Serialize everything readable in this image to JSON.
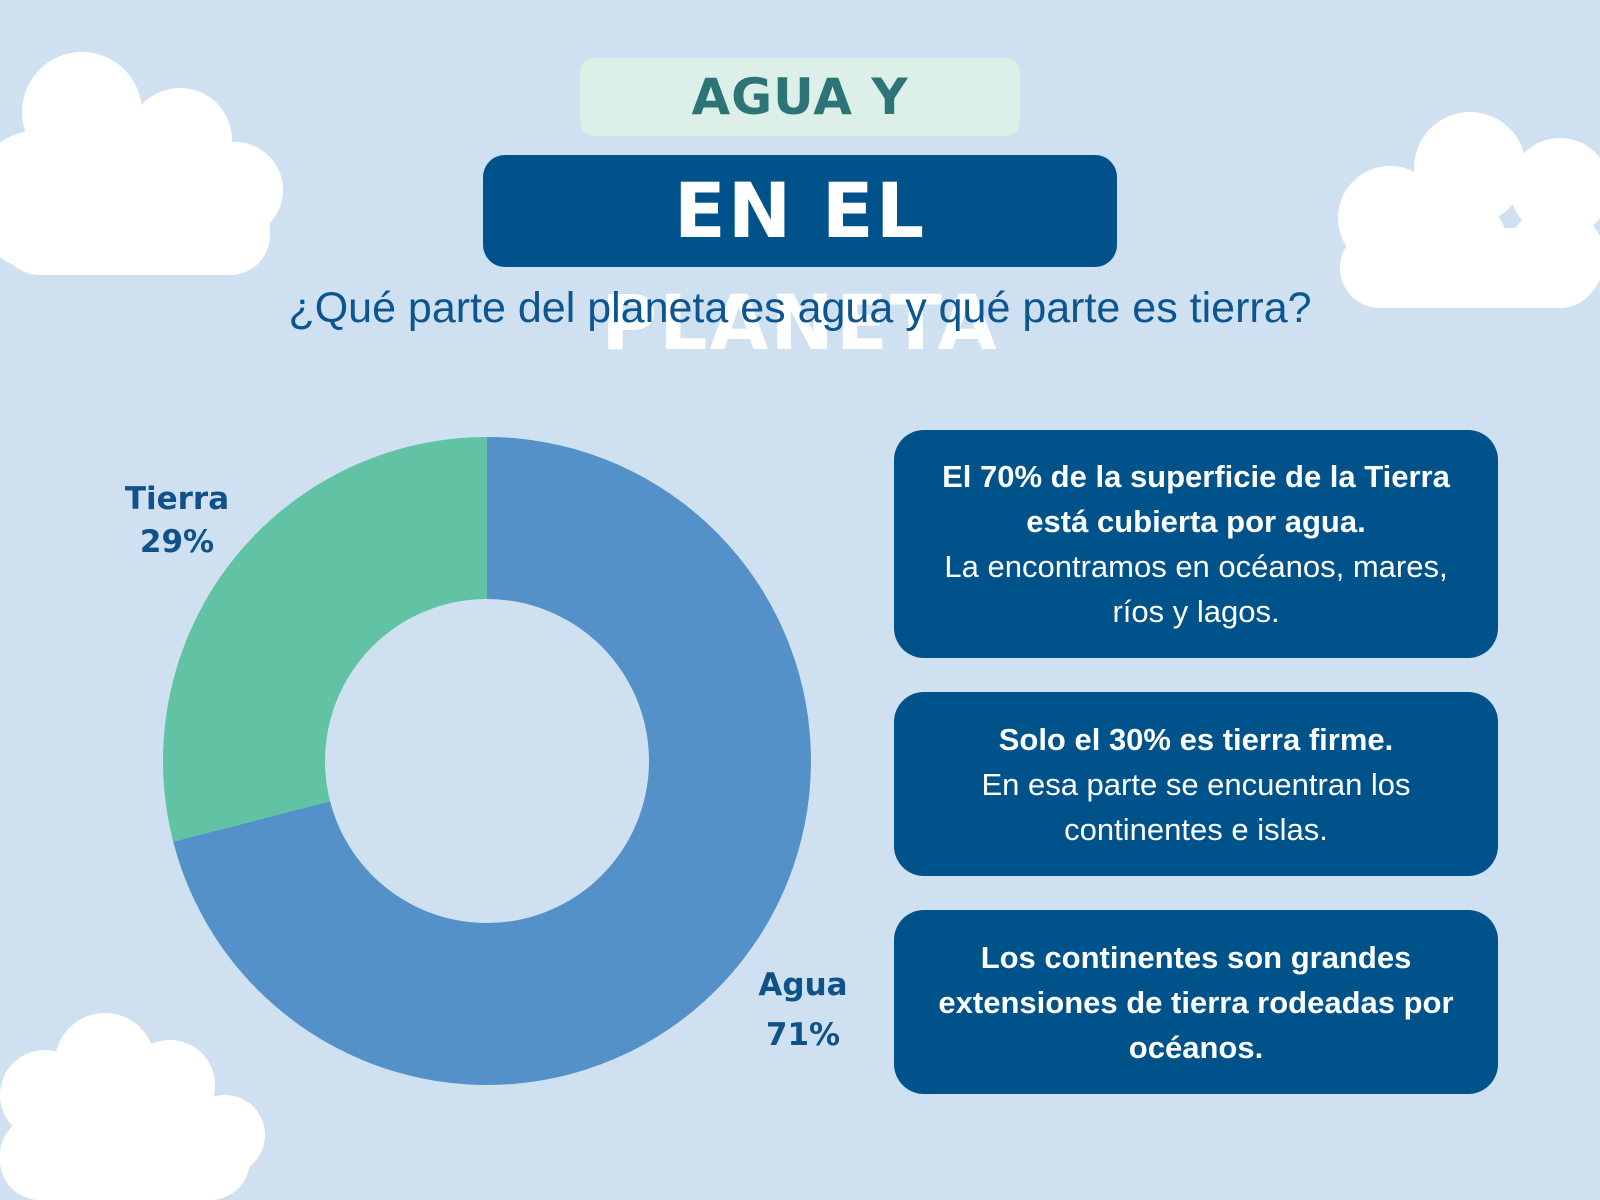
{
  "header": {
    "title_top": "AGUA Y TIERRA",
    "title_main": "EN EL PLANETA",
    "subtitle": "¿Qué parte del planeta es agua y qué parte es tierra?"
  },
  "chart_data": {
    "type": "pie",
    "variant": "donut",
    "categories": [
      "Agua",
      "Tierra"
    ],
    "values": [
      71,
      29
    ],
    "labels": [
      "71%",
      "29%"
    ],
    "colors": [
      "#5491c8",
      "#62c3a4"
    ],
    "title": ""
  },
  "cards": [
    {
      "bold": "El 70% de la superficie de la Tierra está cubierta por agua.",
      "text": "La encontramos en océanos, mares, ríos y lagos."
    },
    {
      "bold": "Solo el 30% es tierra firme.",
      "text": "En esa parte se encuentran los continentes e islas."
    },
    {
      "bold": "Los continentes son grandes extensiones de tierra rodeadas por océanos.",
      "text": ""
    }
  ],
  "colors": {
    "background": "#cfe1f1",
    "navy": "#00528b",
    "teal_text": "#2c7476",
    "mint_badge": "#dcefe8"
  }
}
